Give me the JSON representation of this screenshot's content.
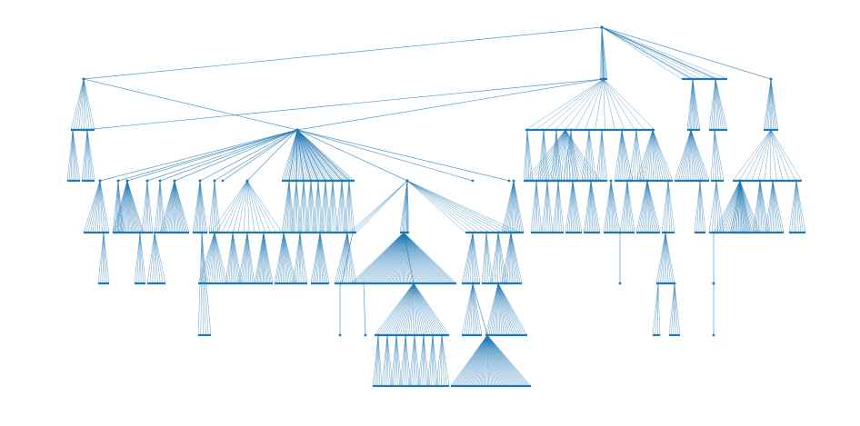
{
  "diagram": {
    "type": "tree",
    "orientation": "top-down",
    "colors": {
      "edge": "#1f77b4",
      "node": "#1f77b4",
      "background": "#ffffff"
    }
  }
}
